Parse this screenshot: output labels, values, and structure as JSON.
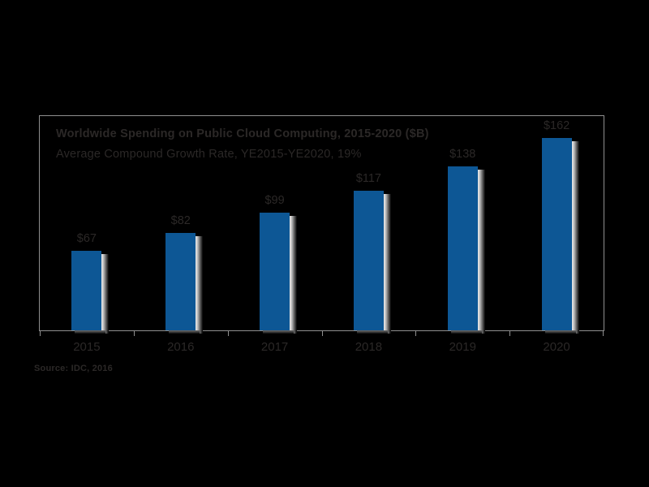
{
  "window": {
    "background": "#000000"
  },
  "chart_data": {
    "type": "bar",
    "title": "Worldwide Spending on Public Cloud Computing, 2015-2020 ($B)",
    "subtitle": "Average Compound Growth Rate, YE2015-YE2020, 19%",
    "categories": [
      "2015",
      "2016",
      "2017",
      "2018",
      "2019",
      "2020"
    ],
    "values": [
      67,
      82,
      99,
      117,
      138,
      162
    ],
    "value_labels": [
      "$67",
      "$82",
      "$99",
      "$117",
      "$138",
      "$162"
    ],
    "unit": "$B",
    "ylim": [
      0,
      180
    ],
    "grid": false,
    "legend": "none",
    "source_note": "Source: IDC, 2016"
  },
  "colors": {
    "background": "#000000",
    "bar_fill": "#0D5795",
    "text": "#2B2827",
    "frame_line": "#8F8F8F",
    "bar_shadow_light": "#ECECEC"
  }
}
